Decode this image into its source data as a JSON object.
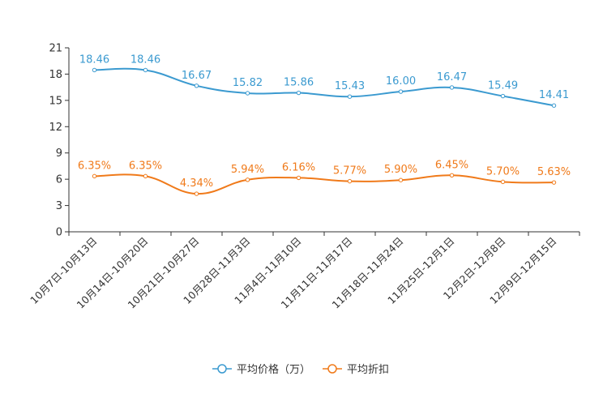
{
  "chart_data": {
    "type": "line",
    "categories": [
      "10月7日-10月13日",
      "10月14日-10月20日",
      "10月21日-10月27日",
      "10月28日-11月3日",
      "11月4日-11月10日",
      "11月11日-11月17日",
      "11月18日-11月24日",
      "11月25日-12月1日",
      "12月2日-12月8日",
      "12月9日-12月15日"
    ],
    "series": [
      {
        "name": "平均价格（万）",
        "color": "#3b9ad0",
        "values": [
          18.46,
          18.46,
          16.67,
          15.82,
          15.86,
          15.43,
          16.0,
          16.47,
          15.49,
          14.41
        ],
        "labels": [
          "18.46",
          "18.46",
          "16.67",
          "15.82",
          "15.86",
          "15.43",
          "16.00",
          "16.47",
          "15.49",
          "14.41"
        ]
      },
      {
        "name": "平均折扣",
        "color": "#f07a1a",
        "values": [
          6.35,
          6.35,
          4.34,
          5.94,
          6.16,
          5.77,
          5.9,
          6.45,
          5.7,
          5.63
        ],
        "labels": [
          "6.35%",
          "6.35%",
          "4.34%",
          "5.94%",
          "6.16%",
          "5.77%",
          "5.90%",
          "6.45%",
          "5.70%",
          "5.63%"
        ]
      }
    ],
    "yticks": [
      "0",
      "3",
      "6",
      "9",
      "12",
      "15",
      "18",
      "21"
    ],
    "ylim": [
      0,
      21
    ],
    "title": "",
    "xlabel": "",
    "ylabel": ""
  }
}
